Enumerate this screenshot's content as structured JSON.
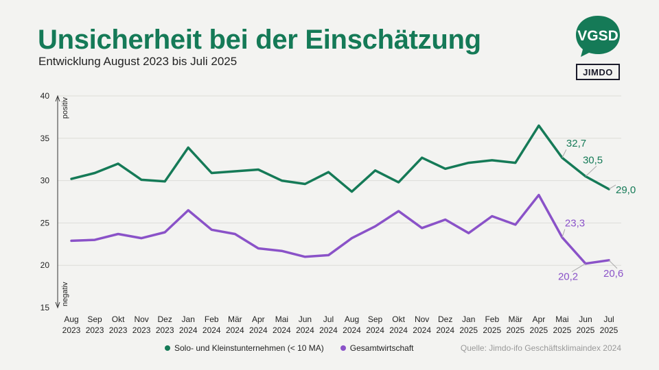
{
  "header": {
    "title": "Unsicherheit bei der Einschätzung",
    "subtitle": "Entwicklung August 2023 bis Juli 2025"
  },
  "logos": {
    "vgsd": "VGSD",
    "jimdo": "JIMDO"
  },
  "source": "Quelle: Jimdo-ifo Geschäftsklimaindex 2024",
  "colors": {
    "green": "#157a57",
    "purple": "#8a52c8",
    "grid": "#dcdcd8",
    "text": "#222222"
  },
  "chart_data": {
    "type": "line",
    "title": "Unsicherheit bei der Einschätzung",
    "xlabel": "",
    "ylabel": "",
    "axis_labels": {
      "top": "positiv",
      "bottom": "negativ"
    },
    "ylim": [
      15,
      40
    ],
    "yticks": [
      15,
      20,
      25,
      30,
      35,
      40
    ],
    "categories": [
      [
        "Aug",
        "2023"
      ],
      [
        "Sep",
        "2023"
      ],
      [
        "Okt",
        "2023"
      ],
      [
        "Nov",
        "2023"
      ],
      [
        "Dez",
        "2023"
      ],
      [
        "Jan",
        "2024"
      ],
      [
        "Feb",
        "2024"
      ],
      [
        "Mär",
        "2024"
      ],
      [
        "Apr",
        "2024"
      ],
      [
        "Mai",
        "2024"
      ],
      [
        "Jun",
        "2024"
      ],
      [
        "Jul",
        "2024"
      ],
      [
        "Aug",
        "2024"
      ],
      [
        "Sep",
        "2024"
      ],
      [
        "Okt",
        "2024"
      ],
      [
        "Nov",
        "2024"
      ],
      [
        "Dez",
        "2024"
      ],
      [
        "Jan",
        "2025"
      ],
      [
        "Feb",
        "2025"
      ],
      [
        "Mär",
        "2025"
      ],
      [
        "Apr",
        "2025"
      ],
      [
        "Mai",
        "2025"
      ],
      [
        "Jun",
        "2025"
      ],
      [
        "Jul",
        "2025"
      ]
    ],
    "series": [
      {
        "name": "Solo- und Kleinstunternehmen (< 10 MA)",
        "color": "#157a57",
        "values": [
          30.2,
          30.9,
          32.0,
          30.1,
          29.9,
          33.9,
          30.9,
          31.1,
          31.3,
          30.0,
          29.6,
          31.0,
          28.7,
          31.2,
          29.8,
          32.7,
          31.4,
          32.1,
          32.4,
          32.1,
          36.5,
          32.7,
          30.5,
          29.0
        ],
        "labels": [
          {
            "index": 21,
            "text": "32,7"
          },
          {
            "index": 22,
            "text": "30,5"
          },
          {
            "index": 23,
            "text": "29,0"
          }
        ]
      },
      {
        "name": "Gesamtwirtschaft",
        "color": "#8a52c8",
        "values": [
          22.9,
          23.0,
          23.7,
          23.2,
          23.9,
          26.5,
          24.2,
          23.7,
          22.0,
          21.7,
          21.0,
          21.2,
          23.2,
          24.6,
          26.4,
          24.4,
          25.4,
          23.8,
          25.8,
          24.8,
          28.3,
          23.3,
          20.2,
          20.6
        ],
        "labels": [
          {
            "index": 21,
            "text": "23,3"
          },
          {
            "index": 22,
            "text": "20,2"
          },
          {
            "index": 23,
            "text": "20,6"
          }
        ]
      }
    ],
    "legend": "bottom",
    "grid": true
  }
}
